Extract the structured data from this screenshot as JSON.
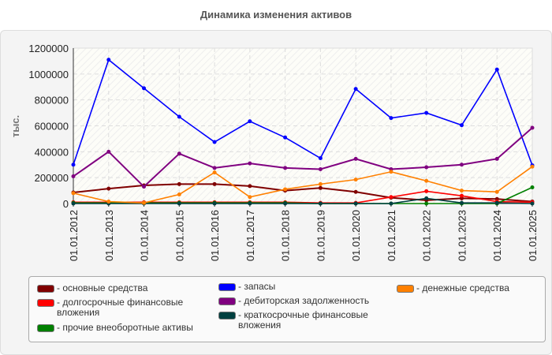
{
  "chart_data": {
    "type": "line",
    "title": "Динамика изменения активов",
    "ylabel": "тыс.",
    "xlabel": "",
    "ylim": [
      0,
      1200000
    ],
    "yticks": [
      "0",
      "200000",
      "400000",
      "600000",
      "800000",
      "1000000",
      "1200000"
    ],
    "grid": true,
    "legend_position": "bottom",
    "categories": [
      "01.01.2012",
      "01.01.2013",
      "01.01.2014",
      "01.01.2015",
      "01.01.2016",
      "01.01.2017",
      "01.01.2018",
      "01.01.2019",
      "01.01.2020",
      "01.01.2021",
      "01.01.2022",
      "01.01.2023",
      "01.01.2024",
      "01.01.2025"
    ],
    "series": [
      {
        "name": "- основные средства",
        "color": "#800000",
        "values": [
          85000,
          115000,
          140000,
          150000,
          150000,
          135000,
          100000,
          120000,
          90000,
          45000,
          25000,
          40000,
          35000,
          15000
        ]
      },
      {
        "name": "- долгосрочные финансовые вложения",
        "color": "#ff0000",
        "values": [
          10000,
          10000,
          10000,
          10000,
          10000,
          10000,
          10000,
          5000,
          5000,
          50000,
          95000,
          60000,
          15000,
          10000
        ]
      },
      {
        "name": "- прочие внеоборотные активы",
        "color": "#008000",
        "values": [
          5000,
          5000,
          5000,
          5000,
          5000,
          5000,
          5000,
          0,
          0,
          0,
          0,
          0,
          0,
          125000
        ]
      },
      {
        "name": "- запасы",
        "color": "#0000ff",
        "values": [
          300000,
          1110000,
          890000,
          670000,
          475000,
          635000,
          510000,
          350000,
          885000,
          660000,
          700000,
          605000,
          1035000,
          295000
        ]
      },
      {
        "name": "- дебиторская задолженность",
        "color": "#800080",
        "values": [
          210000,
          400000,
          130000,
          385000,
          275000,
          310000,
          275000,
          265000,
          345000,
          265000,
          280000,
          300000,
          345000,
          585000
        ]
      },
      {
        "name": "- краткосрочные финансовые вложения",
        "color": "#004040",
        "values": [
          0,
          0,
          0,
          0,
          0,
          0,
          0,
          0,
          0,
          0,
          40000,
          5000,
          5000,
          0
        ]
      },
      {
        "name": "- денежные средства",
        "color": "#ff8000",
        "values": [
          80000,
          15000,
          5000,
          70000,
          240000,
          50000,
          110000,
          150000,
          185000,
          245000,
          175000,
          100000,
          90000,
          285000
        ]
      }
    ]
  }
}
